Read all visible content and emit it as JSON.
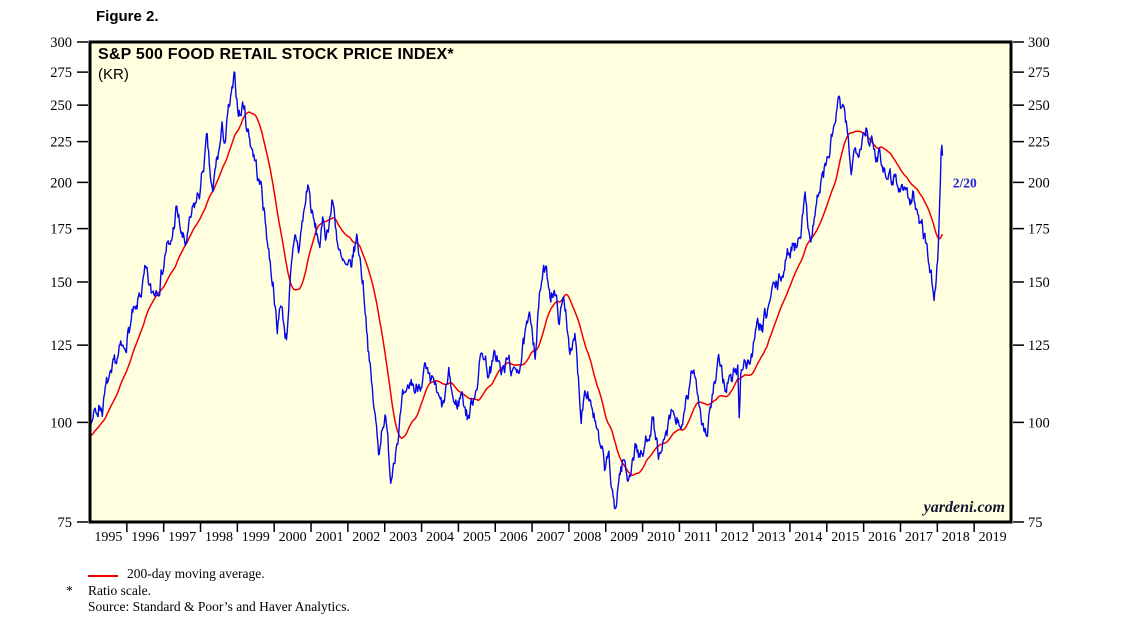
{
  "figure_label": "Figure 2.",
  "chart": {
    "title": "S&P 500 FOOD RETAIL STOCK PRICE INDEX*",
    "subtitle": "(KR)",
    "watermark": "yardeni.com",
    "colors": {
      "price": "#0606ea",
      "ma": "#ee0000",
      "plot_bg": "#ffffe0",
      "frame": "#000000",
      "annotation": "#2323e0",
      "tick_text": "#000000"
    }
  },
  "legend": {
    "ma_swatch_color": "#ee0000",
    "ma_label": "200-day moving average."
  },
  "footnotes": {
    "asterisk": "*",
    "ratio_scale": "Ratio scale.",
    "source": "Source: Standard & Poor’s and Haver Analytics."
  },
  "chart_data": {
    "type": "line",
    "title": "S&P 500 FOOD RETAIL STOCK PRICE INDEX (KR)",
    "y_scale": "ratio (log) scale",
    "ylim": [
      75,
      300
    ],
    "y_ticks": [
      300,
      275,
      250,
      225,
      200,
      175,
      150,
      125,
      100,
      75
    ],
    "x_year_labels": [
      1995,
      1996,
      1997,
      1998,
      1999,
      2000,
      2001,
      2002,
      2003,
      2004,
      2005,
      2006,
      2007,
      2008,
      2009,
      2010,
      2011,
      2012,
      2013,
      2014,
      2015,
      2016,
      2017,
      2018,
      2019
    ],
    "x_axis_range": [
      1995,
      2020
    ],
    "grid": false,
    "legend_position": "below-left",
    "annotations": [
      {
        "t": 2018.42,
        "v": 200,
        "text": "2/20"
      }
    ],
    "series": [
      {
        "name": "S&P 500 Food Retail stock price index (KR)",
        "color": "#0606ea",
        "sampling": "monthly estimates read from chart; plotted with daily-style jitter",
        "t_start": 1995.0,
        "t_step_years": 0.0833333,
        "values": [
          101,
          103,
          102,
          106,
          105,
          109,
          112,
          111,
          116,
          119,
          122,
          121,
          128,
          132,
          136,
          134,
          142,
          147,
          152,
          147,
          143,
          146,
          150,
          155,
          160,
          168,
          163,
          172,
          184,
          178,
          170,
          166,
          172,
          178,
          184,
          190,
          196,
          210,
          224,
          204,
          190,
          208,
          218,
          230,
          226,
          242,
          252,
          264,
          250,
          244,
          252,
          238,
          228,
          222,
          212,
          200,
          196,
          180,
          168,
          156,
          148,
          128,
          143,
          134,
          128,
          148,
          158,
          168,
          164,
          176,
          186,
          200,
          186,
          176,
          170,
          168,
          177,
          172,
          182,
          190,
          178,
          166,
          157,
          155,
          152,
          154,
          163,
          170,
          160,
          150,
          136,
          120,
          108,
          100,
          91,
          99,
          104,
          94,
          85,
          92,
          97,
          102,
          106,
          104,
          109,
          112,
          109,
          112,
          115,
          117,
          112,
          108,
          112,
          107,
          104,
          103,
          109,
          113,
          108,
          104,
          106,
          109,
          106,
          102,
          104,
          108,
          114,
          119,
          123,
          119,
          116,
          117,
          120,
          121,
          114,
          116,
          119,
          118,
          113,
          117,
          120,
          124,
          128,
          131,
          132,
          124,
          138,
          150,
          154,
          150,
          146,
          149,
          140,
          135,
          141,
          138,
          128,
          122,
          126,
          114,
          103,
          111,
          113,
          108,
          104,
          98,
          92,
          89,
          86,
          91,
          81,
          76,
          84,
          88,
          90,
          84,
          88,
          92,
          94,
          91,
          90,
          94,
          98,
          103,
          97,
          92,
          89,
          93,
          96,
          99,
          102,
          99,
          101,
          97,
          103,
          108,
          113,
          116,
          110,
          104,
          99,
          98,
          104,
          109,
          113,
          117,
          114,
          111,
          114,
          112,
          115,
          117,
          116,
          122,
          118,
          120,
          124,
          128,
          132,
          129,
          134,
          139,
          144,
          147,
          147,
          152,
          156,
          160,
          164,
          170,
          167,
          175,
          183,
          190,
          178,
          173,
          183,
          191,
          199,
          205,
          210,
          220,
          230,
          242,
          251,
          243,
          236,
          222,
          208,
          218,
          224,
          230,
          236,
          238,
          228,
          220,
          212,
          220,
          216,
          208,
          213,
          203,
          208,
          201,
          195,
          200,
          196,
          188,
          193,
          185,
          179,
          183,
          171,
          162,
          152,
          144
        ],
        "extra_points": [
          [
            2012.625,
            100
          ],
          [
            2018.0,
            158
          ],
          [
            2018.042,
            178
          ],
          [
            2018.083,
            205
          ],
          [
            2018.115,
            228
          ],
          [
            2018.14,
            216
          ]
        ],
        "last_observation_label": "2/20"
      },
      {
        "name": "200-day moving average",
        "color": "#ee0000",
        "derived_from": "trailing ~200-trading-day (0.79 yr) mean of the price series",
        "window_trading_days": 200,
        "ma_prehistory_assumed": [
          [
            1994.2,
            92
          ],
          [
            1994.6,
            96
          ],
          [
            1995.0,
            101
          ]
        ]
      }
    ]
  }
}
